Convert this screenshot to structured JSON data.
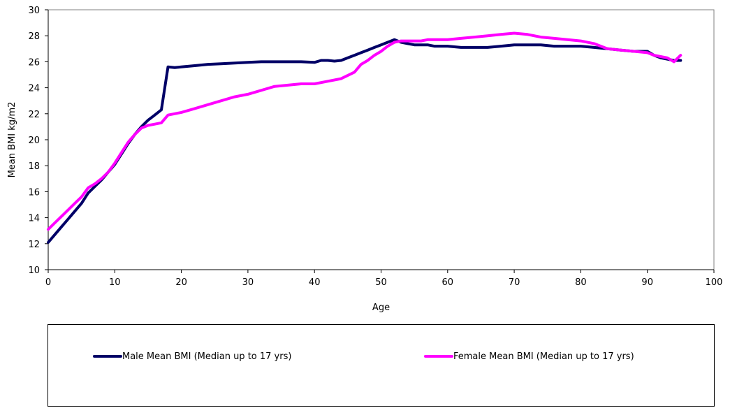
{
  "chart_data": {
    "type": "line",
    "title": "",
    "xlabel": "Age",
    "ylabel": "Mean BMI kg/m2",
    "xlim": [
      0,
      100
    ],
    "ylim": [
      10,
      30
    ],
    "xticks": [
      0,
      10,
      20,
      30,
      40,
      50,
      60,
      70,
      80,
      90,
      100
    ],
    "yticks": [
      10,
      12,
      14,
      16,
      18,
      20,
      22,
      24,
      26,
      28,
      30
    ],
    "grid": false,
    "legend_position": "bottom",
    "series": [
      {
        "name": "Male Mean BMI (Median up to 17 yrs)",
        "color": "#000066",
        "x": [
          0,
          1,
          2,
          3,
          4,
          5,
          6,
          7,
          8,
          9,
          10,
          11,
          12,
          13,
          14,
          15,
          16,
          17,
          18,
          19,
          20,
          22,
          24,
          26,
          28,
          30,
          32,
          34,
          36,
          38,
          40,
          41,
          42,
          43,
          44,
          45,
          46,
          47,
          48,
          49,
          50,
          51,
          52,
          53,
          54,
          55,
          56,
          57,
          58,
          59,
          60,
          62,
          64,
          66,
          68,
          70,
          72,
          74,
          76,
          78,
          80,
          82,
          84,
          86,
          88,
          90,
          91,
          92,
          93,
          94,
          95
        ],
        "y": [
          12.1,
          12.7,
          13.3,
          13.9,
          14.5,
          15.1,
          15.9,
          16.4,
          16.9,
          17.5,
          18.1,
          18.9,
          19.7,
          20.4,
          21.0,
          21.5,
          21.9,
          22.3,
          25.6,
          25.55,
          25.6,
          25.7,
          25.8,
          25.85,
          25.9,
          25.95,
          26.0,
          26.0,
          26.0,
          26.0,
          25.95,
          26.1,
          26.1,
          26.05,
          26.1,
          26.3,
          26.5,
          26.7,
          26.9,
          27.1,
          27.3,
          27.5,
          27.7,
          27.5,
          27.4,
          27.3,
          27.3,
          27.3,
          27.2,
          27.2,
          27.2,
          27.1,
          27.1,
          27.1,
          27.2,
          27.3,
          27.3,
          27.3,
          27.2,
          27.2,
          27.2,
          27.1,
          27.0,
          26.9,
          26.8,
          26.8,
          26.5,
          26.3,
          26.2,
          26.1,
          26.1
        ]
      },
      {
        "name": "Female Mean BMI (Median up to 17 yrs)",
        "color": "#ff00ff",
        "x": [
          0,
          1,
          2,
          3,
          4,
          5,
          6,
          7,
          8,
          9,
          10,
          11,
          12,
          13,
          14,
          15,
          16,
          17,
          18,
          19,
          20,
          22,
          24,
          26,
          28,
          30,
          32,
          34,
          36,
          38,
          40,
          42,
          44,
          46,
          47,
          48,
          49,
          50,
          51,
          52,
          53,
          54,
          55,
          56,
          57,
          58,
          59,
          60,
          62,
          64,
          66,
          68,
          70,
          72,
          74,
          76,
          78,
          80,
          82,
          84,
          86,
          88,
          90,
          91,
          92,
          93,
          94,
          95
        ],
        "y": [
          13.1,
          13.6,
          14.1,
          14.6,
          15.1,
          15.6,
          16.3,
          16.6,
          17.0,
          17.5,
          18.2,
          19.0,
          19.8,
          20.4,
          20.9,
          21.1,
          21.2,
          21.3,
          21.9,
          22.0,
          22.1,
          22.4,
          22.7,
          23.0,
          23.3,
          23.5,
          23.8,
          24.1,
          24.2,
          24.3,
          24.3,
          24.5,
          24.7,
          25.2,
          25.8,
          26.1,
          26.5,
          26.8,
          27.2,
          27.5,
          27.6,
          27.6,
          27.6,
          27.6,
          27.7,
          27.7,
          27.7,
          27.7,
          27.8,
          27.9,
          28.0,
          28.1,
          28.2,
          28.1,
          27.9,
          27.8,
          27.7,
          27.6,
          27.4,
          27.0,
          26.9,
          26.8,
          26.7,
          26.5,
          26.4,
          26.3,
          26.0,
          26.5
        ]
      }
    ]
  }
}
